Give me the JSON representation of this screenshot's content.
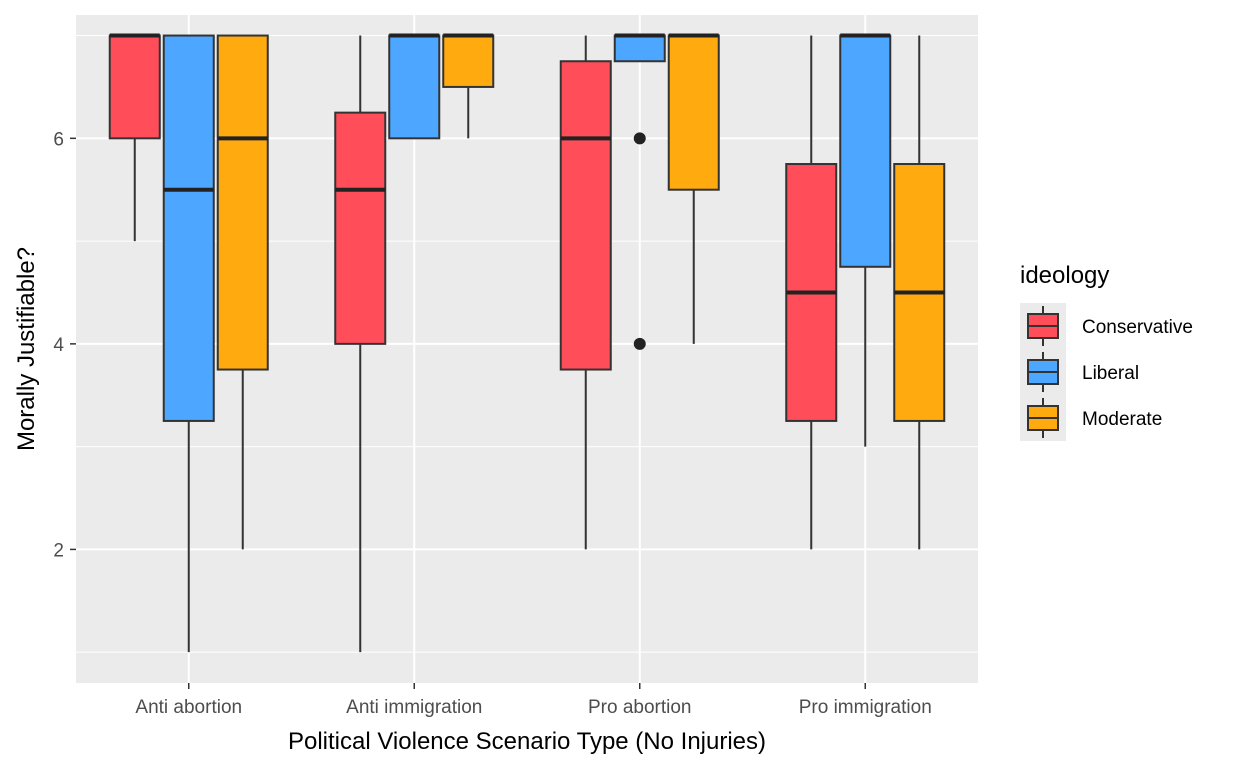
{
  "chart_data": {
    "type": "box",
    "xlabel": "Political Violence Scenario Type (No Injuries)",
    "ylabel": "Morally Justifiable?",
    "ylim": [
      0.7,
      7.2
    ],
    "yticks": [
      2,
      4,
      6
    ],
    "grid": true,
    "legend_title": "ideology",
    "legend_position": "right",
    "categories": [
      "Anti abortion",
      "Anti immigration",
      "Pro abortion",
      "Pro immigration"
    ],
    "series": [
      {
        "name": "Conservative",
        "color": "#FF4D5A",
        "boxes": [
          {
            "whisker_low": 5,
            "q1": 6,
            "median": 7,
            "q3": 7,
            "whisker_high": 7,
            "outliers": []
          },
          {
            "whisker_low": 1,
            "q1": 4,
            "median": 5.5,
            "q3": 6.25,
            "whisker_high": 7,
            "outliers": []
          },
          {
            "whisker_low": 2,
            "q1": 3.75,
            "median": 6,
            "q3": 6.75,
            "whisker_high": 7,
            "outliers": []
          },
          {
            "whisker_low": 2,
            "q1": 3.25,
            "median": 4.5,
            "q3": 5.75,
            "whisker_high": 7,
            "outliers": []
          }
        ]
      },
      {
        "name": "Liberal",
        "color": "#4DA6FF",
        "boxes": [
          {
            "whisker_low": 1,
            "q1": 3.25,
            "median": 5.5,
            "q3": 7,
            "whisker_high": 7,
            "outliers": []
          },
          {
            "whisker_low": 6,
            "q1": 6,
            "median": 7,
            "q3": 7,
            "whisker_high": 7,
            "outliers": []
          },
          {
            "whisker_low": 6.75,
            "q1": 6.75,
            "median": 7,
            "q3": 7,
            "whisker_high": 7,
            "outliers": [
              6,
              4
            ]
          },
          {
            "whisker_low": 3,
            "q1": 4.75,
            "median": 7,
            "q3": 7,
            "whisker_high": 7,
            "outliers": []
          }
        ]
      },
      {
        "name": "Moderate",
        "color": "#FFAA0E",
        "boxes": [
          {
            "whisker_low": 2,
            "q1": 3.75,
            "median": 6,
            "q3": 7,
            "whisker_high": 7,
            "outliers": []
          },
          {
            "whisker_low": 6,
            "q1": 6.5,
            "median": 7,
            "q3": 7,
            "whisker_high": 7,
            "outliers": []
          },
          {
            "whisker_low": 4,
            "q1": 5.5,
            "median": 7,
            "q3": 7,
            "whisker_high": 7,
            "outliers": []
          },
          {
            "whisker_low": 2,
            "q1": 3.25,
            "median": 4.5,
            "q3": 5.75,
            "whisker_high": 7,
            "outliers": []
          }
        ]
      }
    ]
  }
}
